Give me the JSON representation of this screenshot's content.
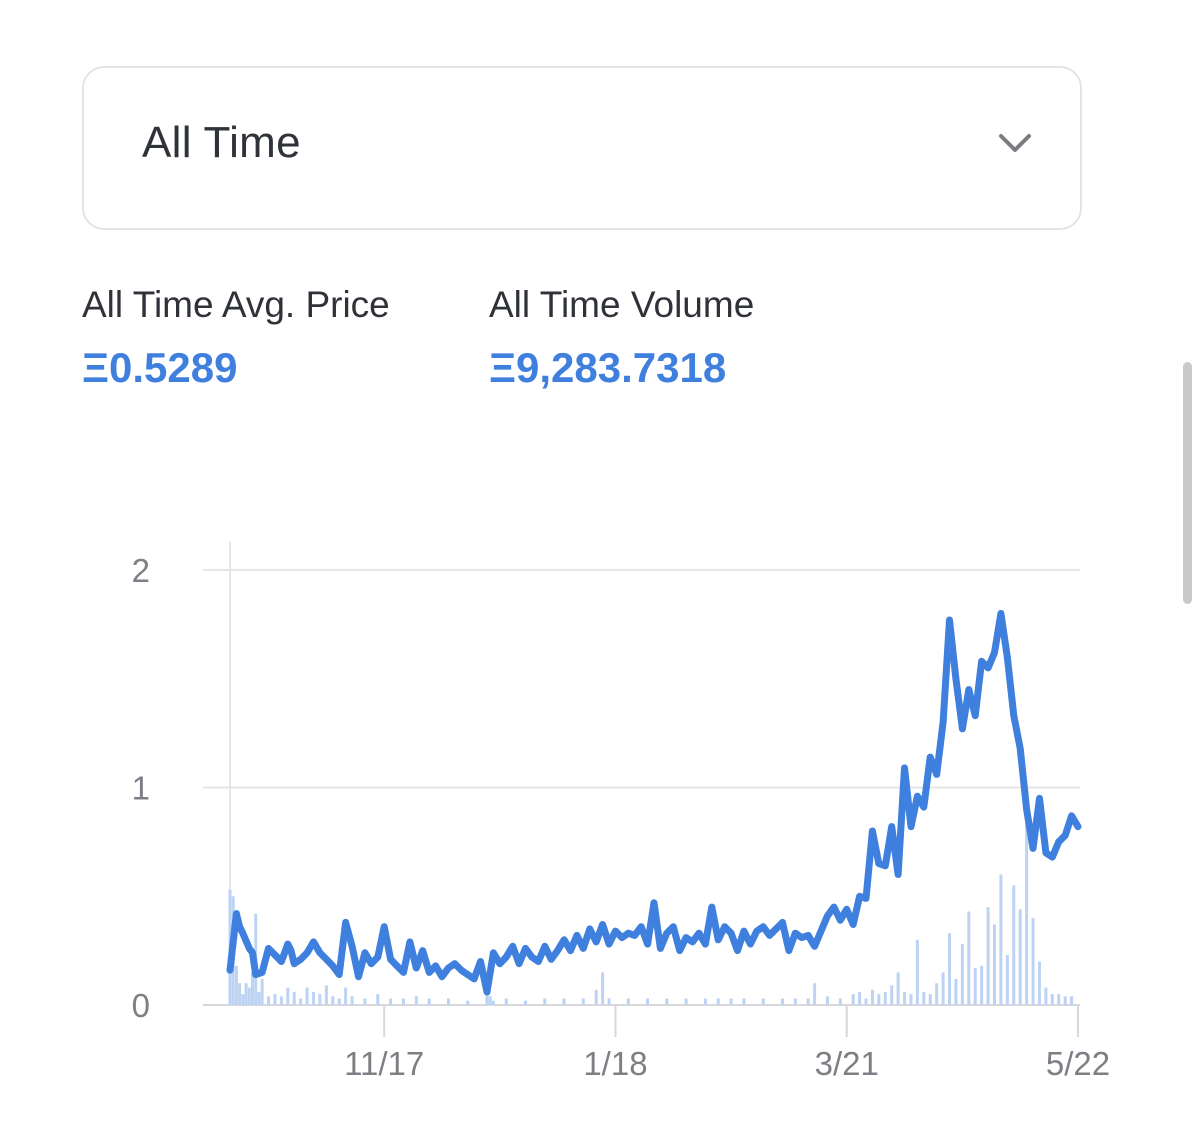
{
  "filter": {
    "selected": "All Time",
    "icon": "chevron-down-icon"
  },
  "stats": {
    "avg_price_label": "All Time Avg. Price",
    "avg_price_value": "Ξ0.5289",
    "volume_label": "All Time Volume",
    "volume_value": "Ξ9,283.7318"
  },
  "colors": {
    "accent": "#3f7fdd",
    "line": "#3f7fdd",
    "volume_bars": "#bdd3f3",
    "grid": "#e6e6e9"
  },
  "chart_data": {
    "type": "line",
    "title": "",
    "xlabel": "",
    "ylabel": "",
    "ylim": [
      0,
      2
    ],
    "y_ticks": [
      "0",
      "1",
      "2"
    ],
    "x_tick_labels": [
      "11/17",
      "1/18",
      "3/21",
      "5/22"
    ],
    "x_tick_positions": [
      48,
      120,
      192,
      264
    ],
    "x_range": [
      0,
      264
    ],
    "grid": true,
    "legend": "none",
    "series": [
      {
        "kind": "line",
        "x": [
          0,
          2,
          3,
          4,
          6,
          7,
          8,
          10,
          12,
          14,
          16,
          18,
          19,
          20,
          22,
          24,
          26,
          28,
          30,
          32,
          34,
          36,
          38,
          40,
          42,
          44,
          46,
          48,
          50,
          52,
          54,
          56,
          58,
          60,
          62,
          64,
          66,
          68,
          70,
          72,
          74,
          76,
          78,
          80,
          82,
          84,
          86,
          88,
          90,
          92,
          94,
          96,
          98,
          100,
          102,
          104,
          106,
          108,
          110,
          112,
          114,
          116,
          118,
          120,
          122,
          124,
          126,
          128,
          130,
          132,
          134,
          136,
          138,
          140,
          142,
          144,
          146,
          148,
          150,
          152,
          154,
          156,
          158,
          160,
          162,
          164,
          166,
          168,
          170,
          172,
          174,
          176,
          178,
          180,
          182,
          184,
          186,
          188,
          190,
          192,
          194,
          196,
          198,
          200,
          202,
          204,
          206,
          208,
          210,
          212,
          214,
          216,
          218,
          220,
          222,
          224,
          226,
          228,
          230,
          232,
          234,
          236,
          238,
          240,
          242,
          244,
          246,
          248,
          250,
          252,
          254,
          256,
          258,
          260,
          262,
          264
        ],
        "values": [
          0.16,
          0.42,
          0.36,
          0.33,
          0.26,
          0.24,
          0.14,
          0.15,
          0.26,
          0.23,
          0.2,
          0.28,
          0.25,
          0.19,
          0.21,
          0.24,
          0.29,
          0.24,
          0.21,
          0.18,
          0.14,
          0.38,
          0.27,
          0.13,
          0.24,
          0.19,
          0.22,
          0.36,
          0.21,
          0.18,
          0.15,
          0.29,
          0.17,
          0.25,
          0.15,
          0.18,
          0.13,
          0.17,
          0.19,
          0.16,
          0.14,
          0.12,
          0.2,
          0.06,
          0.24,
          0.19,
          0.22,
          0.27,
          0.19,
          0.26,
          0.22,
          0.2,
          0.27,
          0.21,
          0.25,
          0.3,
          0.25,
          0.32,
          0.26,
          0.35,
          0.29,
          0.37,
          0.28,
          0.34,
          0.31,
          0.33,
          0.32,
          0.36,
          0.28,
          0.47,
          0.26,
          0.33,
          0.36,
          0.25,
          0.31,
          0.29,
          0.33,
          0.28,
          0.45,
          0.3,
          0.36,
          0.33,
          0.25,
          0.34,
          0.28,
          0.34,
          0.36,
          0.32,
          0.35,
          0.38,
          0.25,
          0.33,
          0.31,
          0.32,
          0.27,
          0.34,
          0.41,
          0.45,
          0.39,
          0.44,
          0.37,
          0.5,
          0.49,
          0.8,
          0.65,
          0.64,
          0.82,
          0.6,
          1.09,
          0.82,
          0.96,
          0.91,
          1.14,
          1.06,
          1.3,
          1.77,
          1.5,
          1.27,
          1.45,
          1.33,
          1.58,
          1.55,
          1.62,
          1.8,
          1.6,
          1.33,
          1.18,
          0.9,
          0.72,
          0.95,
          0.7,
          0.68,
          0.75,
          0.78,
          0.87,
          0.82
        ]
      },
      {
        "kind": "bar",
        "name": "",
        "x": [
          0,
          1,
          2,
          3,
          4,
          5,
          6,
          7,
          8,
          9,
          10,
          12,
          14,
          16,
          18,
          20,
          22,
          24,
          26,
          28,
          30,
          32,
          34,
          36,
          38,
          42,
          46,
          50,
          54,
          58,
          62,
          68,
          74,
          80,
          81,
          82,
          86,
          92,
          98,
          104,
          110,
          114,
          116,
          118,
          124,
          130,
          136,
          142,
          148,
          152,
          156,
          160,
          166,
          172,
          176,
          180,
          182,
          186,
          190,
          194,
          196,
          198,
          200,
          202,
          204,
          206,
          208,
          210,
          212,
          214,
          216,
          218,
          220,
          222,
          224,
          226,
          228,
          230,
          232,
          234,
          236,
          238,
          240,
          242,
          244,
          246,
          248,
          250,
          252,
          254,
          256,
          258,
          260,
          262
        ],
        "values": [
          0.53,
          0.5,
          0.18,
          0.1,
          0.05,
          0.1,
          0.08,
          0.15,
          0.42,
          0.06,
          0.12,
          0.04,
          0.05,
          0.04,
          0.08,
          0.06,
          0.03,
          0.08,
          0.06,
          0.05,
          0.09,
          0.04,
          0.03,
          0.08,
          0.04,
          0.03,
          0.05,
          0.03,
          0.03,
          0.04,
          0.03,
          0.03,
          0.02,
          0.1,
          0.04,
          0.02,
          0.03,
          0.02,
          0.03,
          0.03,
          0.03,
          0.07,
          0.15,
          0.03,
          0.03,
          0.03,
          0.03,
          0.03,
          0.03,
          0.03,
          0.03,
          0.03,
          0.03,
          0.03,
          0.03,
          0.03,
          0.1,
          0.04,
          0.03,
          0.05,
          0.06,
          0.03,
          0.07,
          0.05,
          0.06,
          0.09,
          0.15,
          0.06,
          0.05,
          0.3,
          0.06,
          0.05,
          0.1,
          0.15,
          0.33,
          0.12,
          0.28,
          0.43,
          0.17,
          0.18,
          0.45,
          0.37,
          0.6,
          0.23,
          0.55,
          0.44,
          0.95,
          0.4,
          0.2,
          0.08,
          0.05,
          0.05,
          0.04,
          0.04
        ]
      }
    ]
  }
}
